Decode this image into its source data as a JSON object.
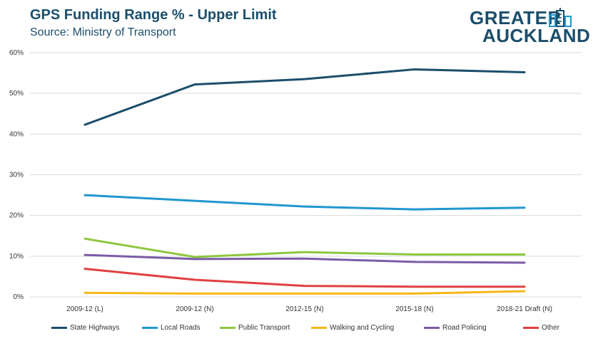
{
  "header": {
    "title": "GPS Funding Range % - Upper Limit",
    "subtitle": "Source: Ministry of Transport"
  },
  "logo": {
    "line1": "GREATER",
    "line2": "AUCKLAND"
  },
  "colors": {
    "title": "#1b4e6b",
    "grid": "#d9d9d9",
    "tick_text": "#333333"
  },
  "chart_data": {
    "type": "line",
    "title": "GPS Funding Range % - Upper Limit",
    "subtitle": "Source: Ministry of Transport",
    "categories": [
      "2009-12 (L)",
      "2009-12 (N)",
      "2012-15 (N)",
      "2015-18 (N)",
      "2018-21 Draft (N)"
    ],
    "ylim": [
      0,
      60
    ],
    "yticks": [
      0,
      10,
      20,
      30,
      40,
      50,
      60
    ],
    "ytick_labels": [
      "0%",
      "10%",
      "20%",
      "30%",
      "40%",
      "50%",
      "60%"
    ],
    "grid": true,
    "legend_position": "bottom",
    "series": [
      {
        "name": "State Highways",
        "color": "#1b4e6b",
        "values": [
          42.3,
          52.2,
          53.5,
          55.9,
          55.2
        ]
      },
      {
        "name": "Local Roads",
        "color": "#1f96cf",
        "values": [
          25.0,
          23.6,
          22.2,
          21.5,
          21.9
        ]
      },
      {
        "name": "Public Transport",
        "color": "#8dc63f",
        "values": [
          14.3,
          9.8,
          11.0,
          10.4,
          10.4
        ]
      },
      {
        "name": "Walking and Cycling",
        "color": "#f7b718",
        "values": [
          1.0,
          0.8,
          0.8,
          0.8,
          1.4
        ]
      },
      {
        "name": "Road Policing",
        "color": "#7b5ba6",
        "values": [
          10.3,
          9.3,
          9.4,
          8.6,
          8.4
        ]
      },
      {
        "name": "Other",
        "color": "#e04040",
        "values": [
          6.9,
          4.2,
          2.7,
          2.5,
          2.5
        ]
      }
    ]
  }
}
